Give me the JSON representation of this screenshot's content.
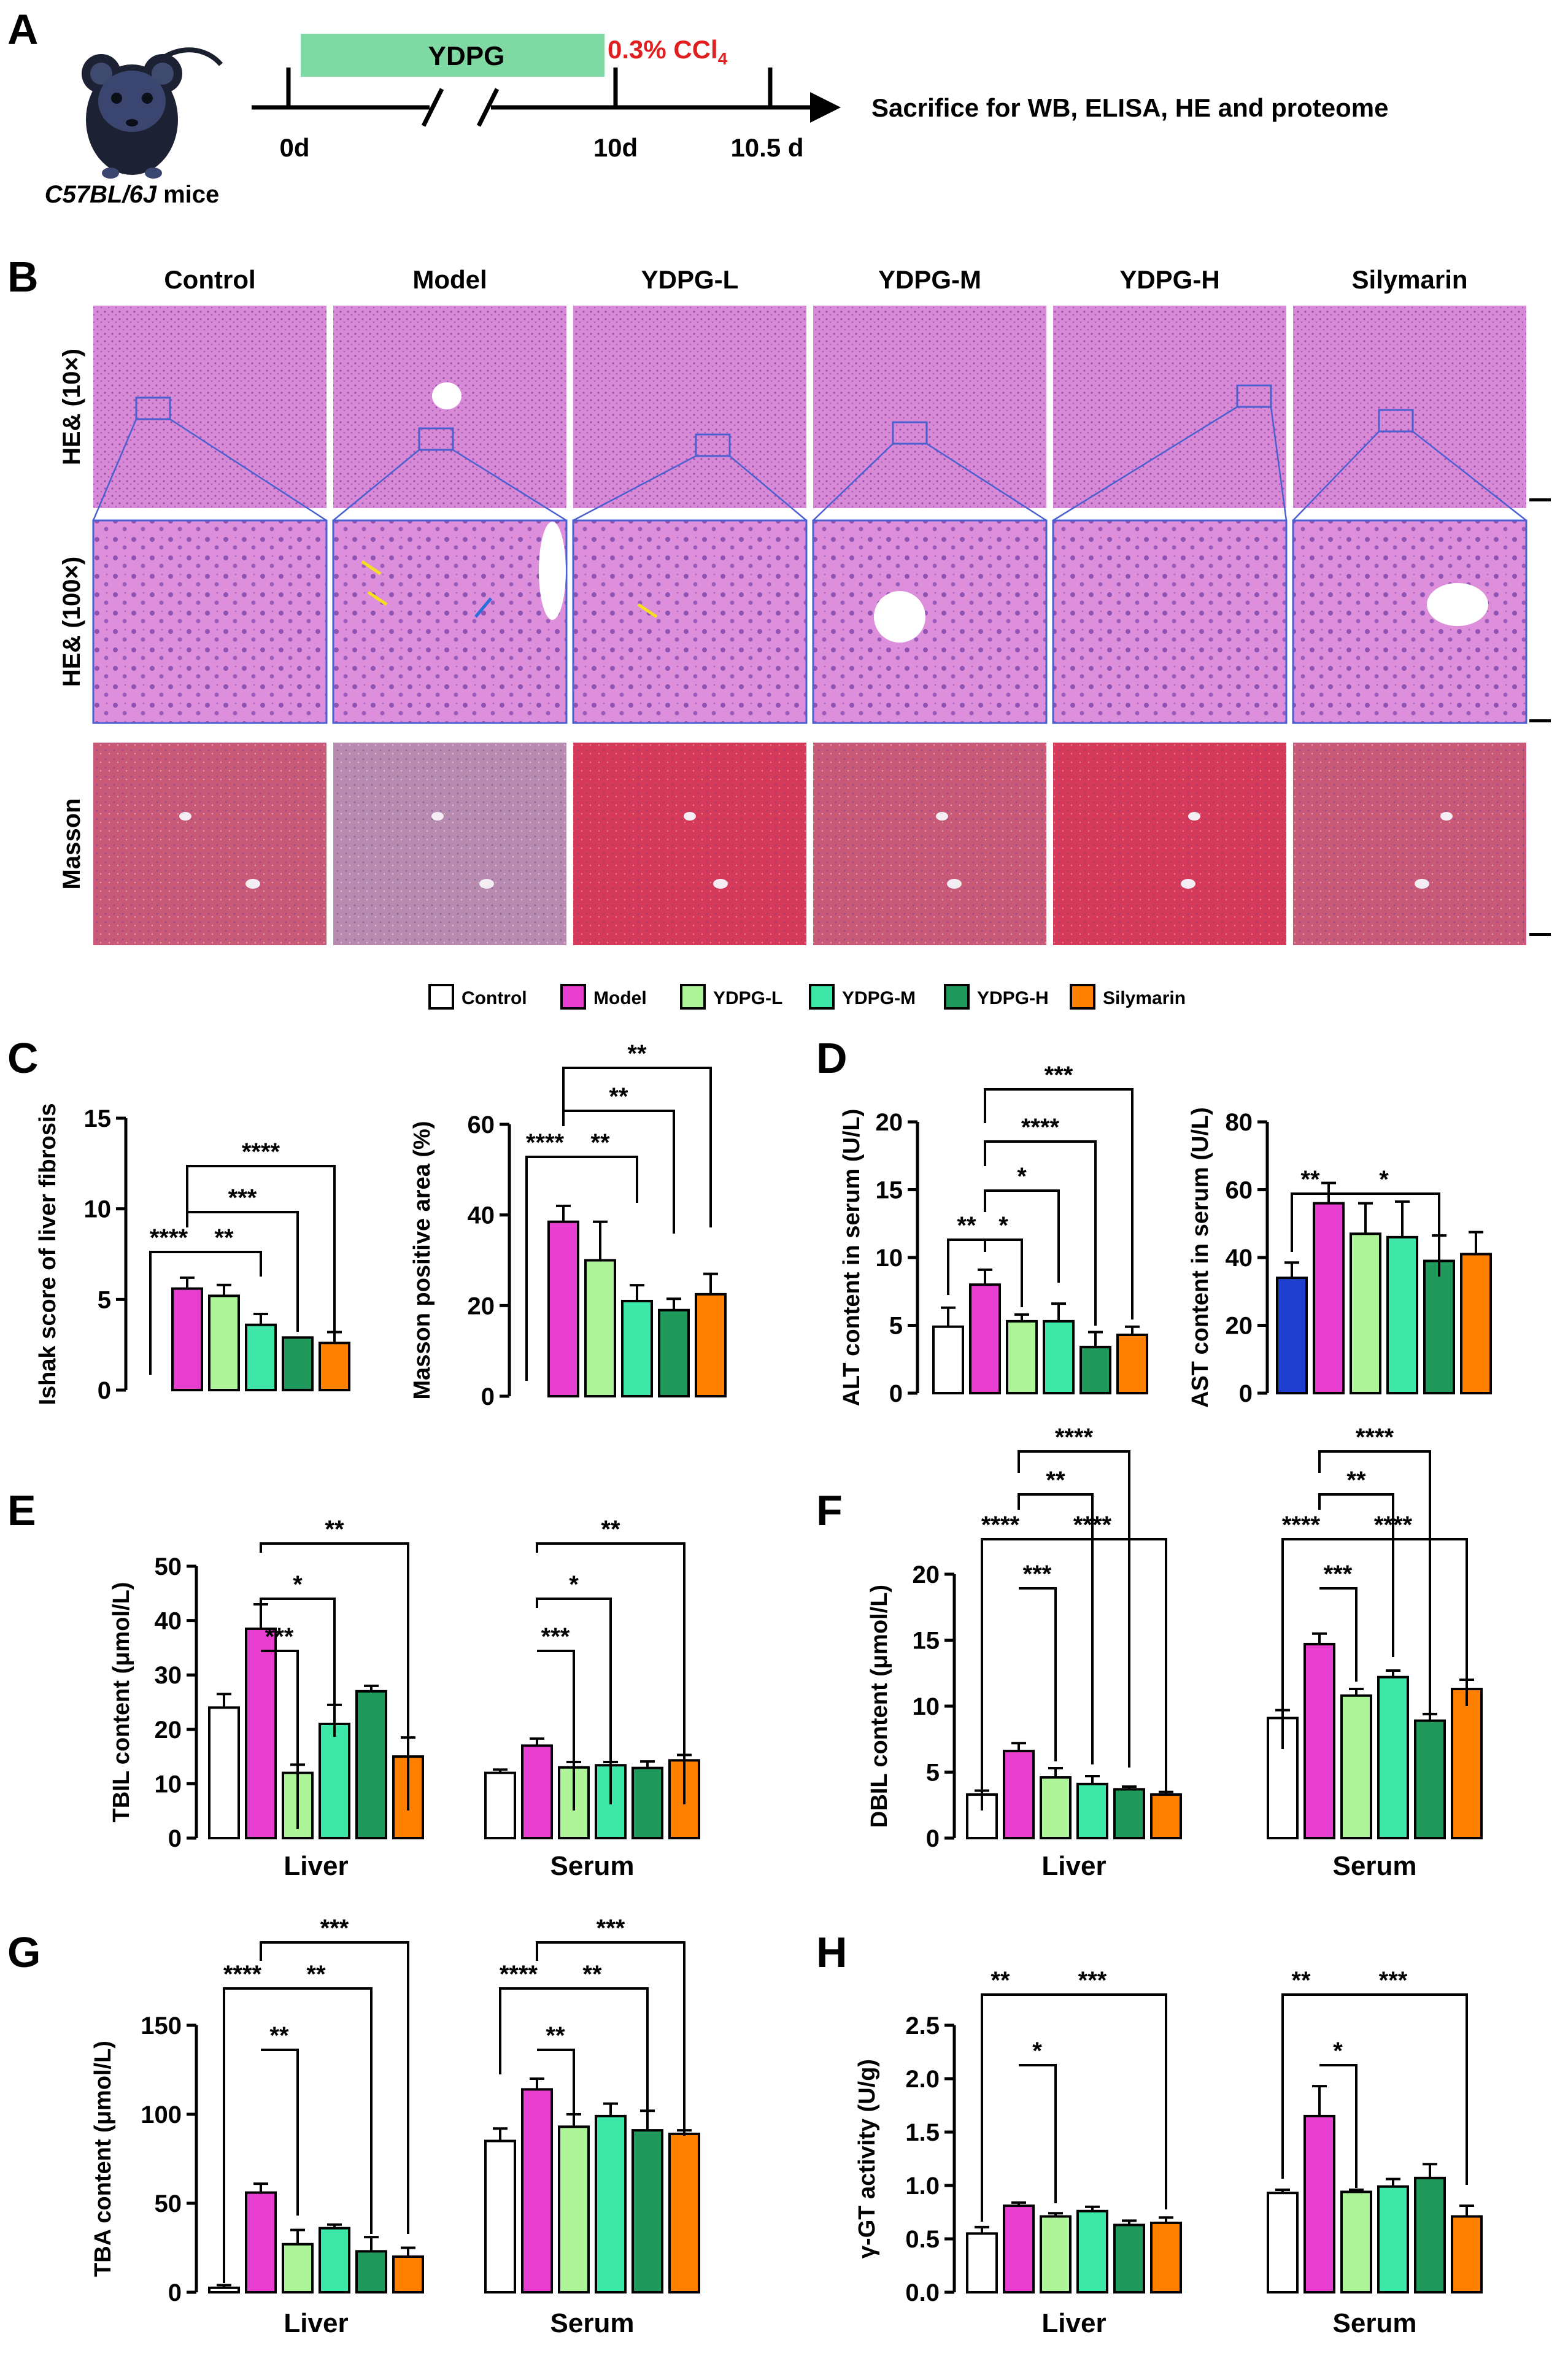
{
  "panels": [
    "A",
    "B",
    "C",
    "D",
    "E",
    "F",
    "G",
    "H"
  ],
  "timeline": {
    "treatment": "YDPG",
    "toxin": "0.3% CCl",
    "toxin_sub": "4",
    "days": [
      "0d",
      "10d",
      "10.5 d"
    ],
    "endpoint": "Sacrifice for WB, ELISA, HE and proteome",
    "mouse": "C57BL/6J",
    "mouse_suffix": " mice"
  },
  "histology": {
    "columns": [
      "Control",
      "Model",
      "YDPG-L",
      "YDPG-M",
      "YDPG-H",
      "Silymarin"
    ],
    "rows": [
      "HE& (10×)",
      "HE& (100×)",
      "Masson"
    ]
  },
  "legend": {
    "items": [
      "Control",
      "Model",
      "YDPG-L",
      "YDPG-M",
      "YDPG-H",
      "Silymarin"
    ],
    "colors": [
      "#ffffff",
      "#e83fd1",
      "#aef59a",
      "#3ee6a8",
      "#1f9a5c",
      "#ff8000"
    ]
  },
  "chart_data": [
    {
      "id": "C1",
      "type": "bar",
      "ylabel": "Ishak score of liver fibrosis",
      "ylim": [
        0,
        15
      ],
      "yticks": [
        0,
        5,
        10,
        15
      ],
      "series": [
        "Control",
        "Model",
        "YDPG-L",
        "YDPG-M",
        "YDPG-H",
        "Silymarin"
      ],
      "values": [
        0,
        5.6,
        5.2,
        3.6,
        2.9,
        2.6
      ],
      "errors": [
        0,
        0.6,
        0.6,
        0.6,
        0,
        0.6
      ],
      "sig": [
        {
          "a": 0,
          "b": 1,
          "label": "****"
        },
        {
          "a": 1,
          "b": 3,
          "label": "**"
        },
        {
          "a": 1,
          "b": 4,
          "label": "***"
        },
        {
          "a": 1,
          "b": 5,
          "label": "****"
        }
      ]
    },
    {
      "id": "C2",
      "type": "bar",
      "ylabel": "Masson positive area (%)",
      "ylim": [
        0,
        60
      ],
      "yticks": [
        0,
        20,
        40,
        60
      ],
      "values": [
        0,
        38.5,
        30,
        21,
        19,
        22.5
      ],
      "errors": [
        0,
        3.5,
        8.5,
        3.5,
        2.5,
        4.5
      ],
      "sig": [
        {
          "a": 0,
          "b": 1,
          "label": "****"
        },
        {
          "a": 1,
          "b": 3,
          "label": "**"
        },
        {
          "a": 1,
          "b": 4,
          "label": "**"
        },
        {
          "a": 1,
          "b": 5,
          "label": "**"
        }
      ]
    },
    {
      "id": "D1",
      "type": "bar",
      "ylabel": "ALT content in serum (U/L)",
      "ylim": [
        0,
        20
      ],
      "yticks": [
        0,
        5,
        10,
        15,
        20
      ],
      "values": [
        4.9,
        8.0,
        5.3,
        5.3,
        3.4,
        4.3
      ],
      "errors": [
        1.4,
        1.1,
        0.5,
        1.3,
        1.1,
        0.6
      ],
      "sig": [
        {
          "a": 0,
          "b": 1,
          "label": "**"
        },
        {
          "a": 1,
          "b": 2,
          "label": "*"
        },
        {
          "a": 1,
          "b": 3,
          "label": "*"
        },
        {
          "a": 1,
          "b": 4,
          "label": "****"
        },
        {
          "a": 1,
          "b": 5,
          "label": "***"
        }
      ]
    },
    {
      "id": "D2",
      "type": "bar",
      "ylabel": "AST content in serum (U/L)",
      "ylim": [
        0,
        80
      ],
      "yticks": [
        0,
        20,
        40,
        60,
        80
      ],
      "values": [
        34,
        56,
        47,
        46,
        39,
        41
      ],
      "errors": [
        4.5,
        6,
        9,
        10.5,
        7.5,
        6.5
      ],
      "control_color": "#1e3fcf",
      "sig": [
        {
          "a": 0,
          "b": 1,
          "label": "**"
        },
        {
          "a": 1,
          "b": 4,
          "label": "*"
        }
      ]
    },
    {
      "id": "E",
      "type": "bar",
      "ylabel": "TBIL content (μmol/L)",
      "ylim": [
        0,
        50
      ],
      "yticks": [
        0,
        10,
        20,
        30,
        40,
        50
      ],
      "categories": [
        "Liver",
        "Serum"
      ],
      "groups": [
        {
          "values": [
            24,
            38.5,
            12,
            21,
            27,
            15
          ],
          "errors": [
            2.5,
            4.5,
            1.5,
            3.5,
            1,
            3.5
          ]
        },
        {
          "values": [
            12,
            17,
            13,
            13.4,
            12.9,
            14.3
          ],
          "errors": [
            0.6,
            1.3,
            1,
            0.6,
            1.2,
            1
          ]
        }
      ],
      "sig": [
        [
          {
            "a": 1,
            "b": 2,
            "label": "***"
          },
          {
            "a": 1,
            "b": 3,
            "label": "*"
          },
          {
            "a": 1,
            "b": 5,
            "label": "**"
          }
        ],
        [
          {
            "a": 1,
            "b": 2,
            "label": "***"
          },
          {
            "a": 1,
            "b": 3,
            "label": "*"
          },
          {
            "a": 1,
            "b": 5,
            "label": "**"
          }
        ]
      ]
    },
    {
      "id": "F",
      "type": "bar",
      "ylabel": "DBIL content (μmol/L)",
      "ylim": [
        0,
        20
      ],
      "yticks": [
        0,
        5,
        10,
        15,
        20
      ],
      "categories": [
        "Liver",
        "Serum"
      ],
      "groups": [
        {
          "values": [
            3.3,
            6.6,
            4.6,
            4.1,
            3.7,
            3.3
          ],
          "errors": [
            0.3,
            0.6,
            0.7,
            0.6,
            0.2,
            0.2
          ]
        },
        {
          "values": [
            9.1,
            14.7,
            10.8,
            12.2,
            8.9,
            11.3
          ],
          "errors": [
            0.6,
            0.8,
            0.5,
            0.5,
            0.5,
            0.7
          ]
        }
      ],
      "sig": [
        [
          {
            "a": 0,
            "b": 1,
            "label": "****"
          },
          {
            "a": 1,
            "b": 2,
            "label": "***"
          },
          {
            "a": 1,
            "b": 5,
            "label": "****"
          },
          {
            "a": 1,
            "b": 3,
            "label": "**"
          },
          {
            "a": 1,
            "b": 4,
            "label": "****"
          }
        ],
        [
          {
            "a": 0,
            "b": 1,
            "label": "****"
          },
          {
            "a": 1,
            "b": 2,
            "label": "***"
          },
          {
            "a": 1,
            "b": 5,
            "label": "****"
          },
          {
            "a": 1,
            "b": 3,
            "label": "**"
          },
          {
            "a": 1,
            "b": 4,
            "label": "****"
          }
        ]
      ]
    },
    {
      "id": "G",
      "type": "bar",
      "ylabel": "TBA content (μmol/L)",
      "ylim": [
        0,
        150
      ],
      "yticks": [
        0,
        50,
        100,
        150
      ],
      "categories": [
        "Liver",
        "Serum"
      ],
      "groups": [
        {
          "values": [
            2.5,
            56,
            27,
            36,
            23,
            20
          ],
          "errors": [
            1.5,
            5,
            8,
            2,
            8,
            5
          ]
        },
        {
          "values": [
            85,
            114,
            93,
            99,
            91,
            89
          ],
          "errors": [
            7,
            6,
            7,
            7,
            11,
            2
          ]
        }
      ],
      "sig": [
        [
          {
            "a": 0,
            "b": 1,
            "label": "****"
          },
          {
            "a": 1,
            "b": 2,
            "label": "**"
          },
          {
            "a": 1,
            "b": 4,
            "label": "**"
          },
          {
            "a": 1,
            "b": 5,
            "label": "***"
          }
        ],
        [
          {
            "a": 0,
            "b": 1,
            "label": "****"
          },
          {
            "a": 1,
            "b": 2,
            "label": "**"
          },
          {
            "a": 1,
            "b": 4,
            "label": "**"
          },
          {
            "a": 1,
            "b": 5,
            "label": "***"
          }
        ]
      ]
    },
    {
      "id": "H",
      "type": "bar",
      "ylabel": "γ-GT activity (U/g)",
      "ylim": [
        0,
        2.5
      ],
      "yticks": [
        "0.0",
        "0.5",
        "1.0",
        "1.5",
        "2.0",
        "2.5"
      ],
      "categories": [
        "Liver",
        "Serum"
      ],
      "groups": [
        {
          "values": [
            0.55,
            0.81,
            0.71,
            0.76,
            0.63,
            0.65
          ],
          "errors": [
            0.06,
            0.03,
            0.03,
            0.04,
            0.04,
            0.05
          ]
        },
        {
          "values": [
            0.93,
            1.65,
            0.94,
            0.99,
            1.07,
            0.71
          ],
          "errors": [
            0.03,
            0.28,
            0.02,
            0.07,
            0.13,
            0.1
          ]
        }
      ],
      "sig": [
        [
          {
            "a": 0,
            "b": 1,
            "label": "**"
          },
          {
            "a": 1,
            "b": 2,
            "label": "*"
          },
          {
            "a": 1,
            "b": 5,
            "label": "***"
          }
        ],
        [
          {
            "a": 0,
            "b": 1,
            "label": "**"
          },
          {
            "a": 1,
            "b": 2,
            "label": "*"
          },
          {
            "a": 1,
            "b": 5,
            "label": "***"
          }
        ]
      ]
    }
  ]
}
